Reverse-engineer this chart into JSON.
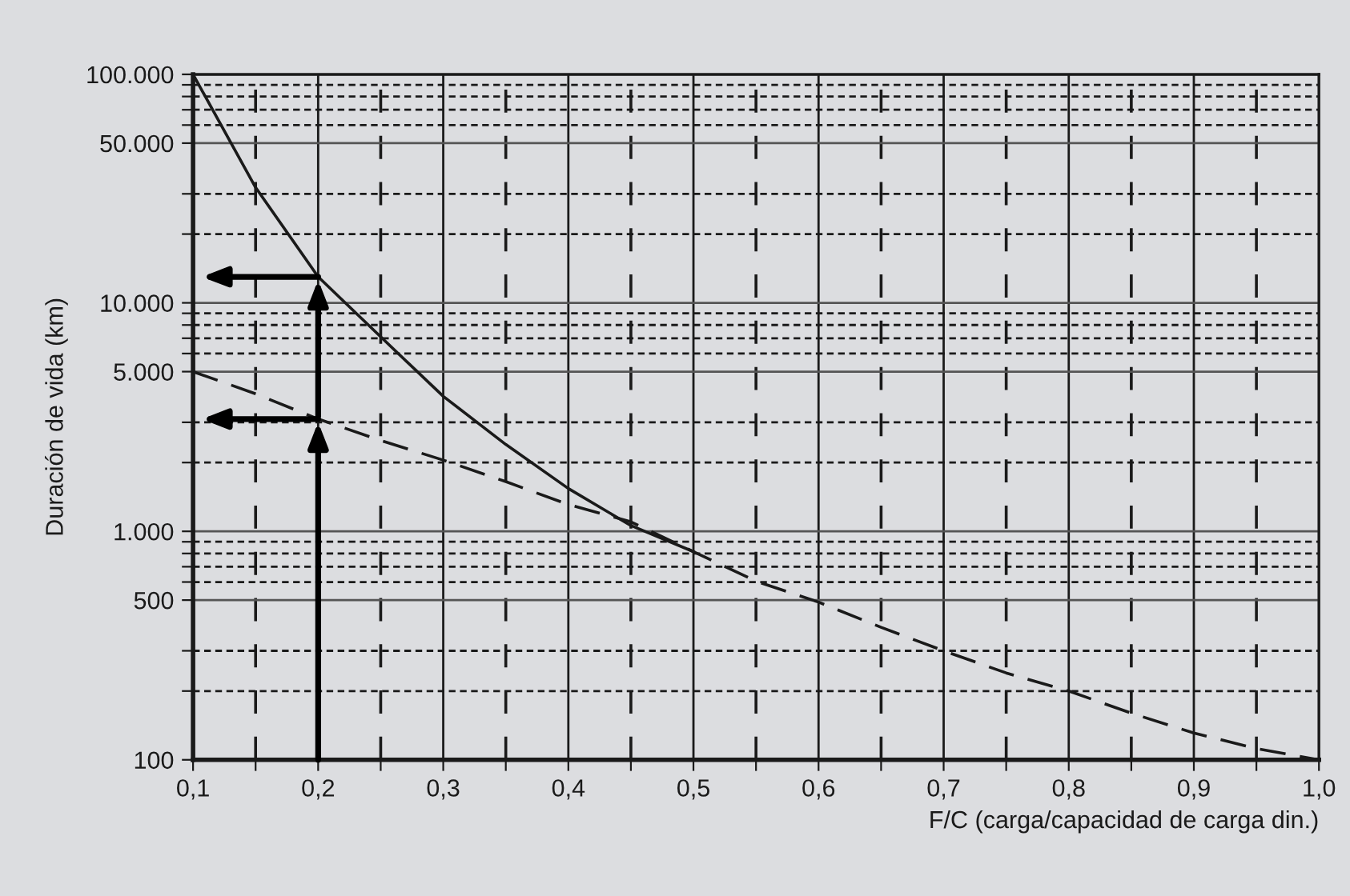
{
  "chart_data": {
    "type": "line",
    "xlabel": "F/C (carga/capacidad de carga din.)",
    "ylabel": "Duración de vida (km)",
    "log": "y",
    "grid": true,
    "xlim": [
      0.1,
      1.0
    ],
    "xticks": [
      {
        "value": 0.1,
        "label": "0,1"
      },
      {
        "value": 0.15,
        "label": null
      },
      {
        "value": 0.2,
        "label": "0,2"
      },
      {
        "value": 0.25,
        "label": null
      },
      {
        "value": 0.3,
        "label": "0,3"
      },
      {
        "value": 0.35,
        "label": null
      },
      {
        "value": 0.4,
        "label": "0,4"
      },
      {
        "value": 0.45,
        "label": null
      },
      {
        "value": 0.5,
        "label": "0,5"
      },
      {
        "value": 0.55,
        "label": null
      },
      {
        "value": 0.6,
        "label": "0,6"
      },
      {
        "value": 0.65,
        "label": null
      },
      {
        "value": 0.7,
        "label": "0,7"
      },
      {
        "value": 0.75,
        "label": null
      },
      {
        "value": 0.8,
        "label": "0,8"
      },
      {
        "value": 0.85,
        "label": null
      },
      {
        "value": 0.9,
        "label": "0,9"
      },
      {
        "value": 0.95,
        "label": null
      },
      {
        "value": 1.0,
        "label": "1,0"
      }
    ],
    "ylim": [
      100,
      100000
    ],
    "yticks": [
      100,
      {
        "value": 200,
        "label": null
      },
      {
        "value": 300,
        "label": null
      },
      500,
      {
        "value": 600,
        "label": null
      },
      {
        "value": 700,
        "label": null
      },
      {
        "value": 800,
        "label": null
      },
      {
        "value": 900,
        "label": null
      },
      {
        "value": 1000,
        "label": "1.000"
      },
      {
        "value": 2000,
        "label": null
      },
      {
        "value": 3000,
        "label": null
      },
      {
        "value": 5000,
        "label": "5.000"
      },
      {
        "value": 6000,
        "label": null
      },
      {
        "value": 7000,
        "label": null
      },
      {
        "value": 8000,
        "label": null
      },
      {
        "value": 9000,
        "label": null
      },
      {
        "value": 10000,
        "label": "10.000"
      },
      {
        "value": 20000,
        "label": null
      },
      {
        "value": 30000,
        "label": null
      },
      {
        "value": 50000,
        "label": "50.000"
      },
      {
        "value": 60000,
        "label": null
      },
      {
        "value": 70000,
        "label": null
      },
      {
        "value": 80000,
        "label": null
      },
      {
        "value": 90000,
        "label": null
      },
      {
        "value": 100000,
        "label": "100.000"
      }
    ],
    "marker": "none",
    "series": [
      {
        "color": "#1a1a1a",
        "line_style": "solid",
        "x": [
          0.1,
          0.15,
          0.2,
          0.25,
          0.3,
          0.35,
          0.4,
          0.45,
          0.5
        ],
        "values": [
          100000,
          32000,
          13000,
          7100,
          3900,
          2400,
          1540,
          1060,
          815
        ]
      },
      {
        "color": "#1a1a1a",
        "line_style": "dashed",
        "x": [
          0.1,
          0.15,
          0.2,
          0.25,
          0.3,
          0.35,
          0.4,
          0.45,
          0.5,
          0.55,
          0.6,
          0.65,
          0.7,
          0.75,
          0.8,
          0.85,
          0.9,
          0.95,
          1.0
        ],
        "values": [
          5000,
          4000,
          3100,
          2500,
          2050,
          1650,
          1310,
          1100,
          815,
          605,
          490,
          380,
          300,
          240,
          200,
          160,
          131,
          112,
          100
        ]
      }
    ]
  }
}
